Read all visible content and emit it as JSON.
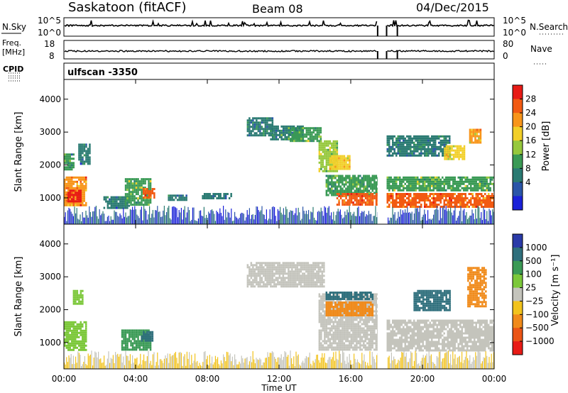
{
  "header": {
    "title": "Saskatoon (fitACF)",
    "beam": "Beam 08",
    "date": "04/Dec/2015"
  },
  "noise_panel": {
    "left_label": "N.Sky",
    "right_label": "N.Search",
    "left_ticks": [
      "10^5",
      "10^0"
    ],
    "right_ticks": [
      "10^5",
      "10^0"
    ]
  },
  "freq_panel": {
    "left_label_1": "Freq.",
    "left_label_2": "[MHz]",
    "right_label": "Nave",
    "left_ticks": [
      "18",
      "8"
    ],
    "right_ticks": [
      "80",
      "0"
    ]
  },
  "cpid": {
    "label": "CPID",
    "value": "ulfscan -3350"
  },
  "colorbar_power": {
    "label": "Power [dB]",
    "ticks": [
      "28",
      "24",
      "20",
      "16",
      "12",
      "8",
      "4"
    ],
    "colors": [
      "#e81b16",
      "#f25a12",
      "#f8951a",
      "#f2cf28",
      "#96c83c",
      "#3a9a55",
      "#2a7a72",
      "#2a55a8",
      "#1a21d8"
    ]
  },
  "colorbar_velocity": {
    "label": "Velocity [m s⁻¹]",
    "ticks": [
      "1000",
      "500",
      "100",
      "25",
      "−25",
      "−100",
      "−500",
      "−1000"
    ],
    "colors": [
      "#2a3aa8",
      "#2f6f7c",
      "#3a9a55",
      "#7cc83a",
      "#c4c4bc",
      "#f2c31c",
      "#f08a1a",
      "#eb5516",
      "#e81b16"
    ]
  },
  "axes": {
    "xlabel": "Time UT",
    "ylabel": "Slant Range [km]",
    "xticks": [
      "00:00",
      "04:00",
      "08:00",
      "12:00",
      "16:00",
      "20:00",
      "00:00"
    ],
    "yticks": [
      "1000",
      "2000",
      "3000",
      "4000"
    ]
  },
  "chart_data": [
    {
      "type": "heatmap",
      "name": "power",
      "x_unit": "hours UT",
      "xlim": [
        0,
        24
      ],
      "ylim": [
        200,
        4600
      ],
      "clim": [
        0,
        30
      ],
      "regions": [
        {
          "t0": 0.0,
          "t1": 1.2,
          "r0": 800,
          "r1": 1650,
          "value": 24
        },
        {
          "t0": 0.2,
          "t1": 0.9,
          "r0": 900,
          "r1": 1250,
          "value": 29
        },
        {
          "t0": 0.0,
          "t1": 0.5,
          "r0": 1850,
          "r1": 2350,
          "value": 10
        },
        {
          "t0": 0.8,
          "t1": 1.4,
          "r0": 2050,
          "r1": 2650,
          "value": 6
        },
        {
          "t0": 2.2,
          "t1": 3.6,
          "r0": 700,
          "r1": 1050,
          "value": 6
        },
        {
          "t0": 3.4,
          "t1": 4.8,
          "r0": 800,
          "r1": 1600,
          "value": 13
        },
        {
          "t0": 4.4,
          "t1": 5.0,
          "r0": 1000,
          "r1": 1300,
          "value": 26
        },
        {
          "t0": 5.8,
          "t1": 6.8,
          "r0": 950,
          "r1": 1100,
          "value": 7
        },
        {
          "t0": 7.7,
          "t1": 9.3,
          "r0": 1000,
          "r1": 1150,
          "value": 6
        },
        {
          "t0": 10.2,
          "t1": 11.6,
          "r0": 2900,
          "r1": 3450,
          "value": 8
        },
        {
          "t0": 11.5,
          "t1": 13.3,
          "r0": 2800,
          "r1": 3200,
          "value": 9
        },
        {
          "t0": 12.5,
          "t1": 14.3,
          "r0": 2750,
          "r1": 3150,
          "value": 12
        },
        {
          "t0": 14.2,
          "t1": 15.2,
          "r0": 1800,
          "r1": 2750,
          "value": 14
        },
        {
          "t0": 14.8,
          "t1": 15.9,
          "r0": 1900,
          "r1": 2300,
          "value": 19
        },
        {
          "t0": 14.6,
          "t1": 17.5,
          "r0": 1100,
          "r1": 1700,
          "value": 11
        },
        {
          "t0": 15.2,
          "t1": 17.5,
          "r0": 800,
          "r1": 1150,
          "value": 26
        },
        {
          "t0": 18.0,
          "t1": 24.0,
          "r0": 1200,
          "r1": 1650,
          "value": 13
        },
        {
          "t0": 18.0,
          "t1": 24.0,
          "r0": 750,
          "r1": 1150,
          "value": 25
        },
        {
          "t0": 18.0,
          "t1": 21.5,
          "r0": 2300,
          "r1": 2900,
          "value": 8
        },
        {
          "t0": 21.2,
          "t1": 22.3,
          "r0": 2200,
          "r1": 2600,
          "value": 19
        },
        {
          "t0": 22.6,
          "t1": 23.2,
          "r0": 2700,
          "r1": 3100,
          "value": 21
        }
      ]
    },
    {
      "type": "heatmap",
      "name": "velocity",
      "x_unit": "hours UT",
      "xlim": [
        0,
        24
      ],
      "ylim": [
        200,
        4600
      ],
      "regions": [
        {
          "t0": 0.0,
          "t1": 1.2,
          "r0": 800,
          "r1": 1650,
          "value": "25"
        },
        {
          "t0": 0.5,
          "t1": 1.0,
          "r0": 2200,
          "r1": 2600,
          "value": "25"
        },
        {
          "t0": 3.2,
          "t1": 4.8,
          "r0": 800,
          "r1": 1400,
          "value": "100"
        },
        {
          "t0": 4.3,
          "t1": 4.9,
          "r0": 1050,
          "r1": 1350,
          "value": "500"
        },
        {
          "t0": 10.2,
          "t1": 14.5,
          "r0": 2700,
          "r1": 3450,
          "value": "-25"
        },
        {
          "t0": 14.2,
          "t1": 17.5,
          "r0": 800,
          "r1": 2500,
          "value": "-25"
        },
        {
          "t0": 14.6,
          "t1": 17.2,
          "r0": 1800,
          "r1": 2250,
          "value": "-500"
        },
        {
          "t0": 14.6,
          "t1": 17.2,
          "r0": 2300,
          "r1": 2550,
          "value": "500"
        },
        {
          "t0": 18.0,
          "t1": 24.0,
          "r0": 750,
          "r1": 1700,
          "value": "-25"
        },
        {
          "t0": 19.5,
          "t1": 21.5,
          "r0": 2000,
          "r1": 2600,
          "value": "500"
        },
        {
          "t0": 22.5,
          "t1": 23.5,
          "r0": 2100,
          "r1": 3300,
          "value": "-500"
        }
      ]
    }
  ]
}
